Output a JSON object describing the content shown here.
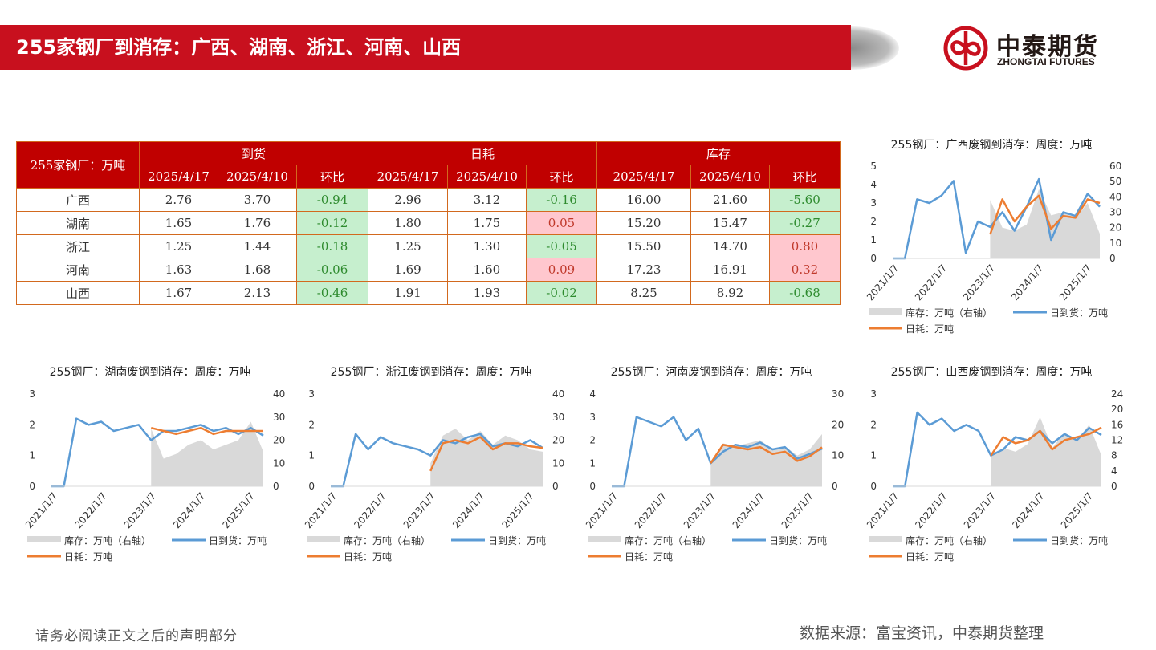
{
  "header": {
    "title": "255家钢厂到消存：广西、湖南、浙江、河南、山西"
  },
  "logo": {
    "cn": "中泰期货",
    "en": "ZHONGTAI FUTURES",
    "color": "#c8101e"
  },
  "table": {
    "corner": "255家钢厂：万吨",
    "groups": [
      "到货",
      "日耗",
      "库存"
    ],
    "subheaders": [
      "2025/4/17",
      "2025/4/10",
      "环比"
    ],
    "rows": [
      {
        "region": "广西",
        "cells": [
          "2.76",
          "3.70",
          "-0.94",
          "2.96",
          "3.12",
          "-0.16",
          "16.00",
          "21.60",
          "-5.60"
        ]
      },
      {
        "region": "湖南",
        "cells": [
          "1.65",
          "1.76",
          "-0.12",
          "1.80",
          "1.75",
          "0.05",
          "15.20",
          "15.47",
          "-0.27"
        ]
      },
      {
        "region": "浙江",
        "cells": [
          "1.25",
          "1.44",
          "-0.18",
          "1.25",
          "1.30",
          "-0.05",
          "15.50",
          "14.70",
          "0.80"
        ]
      },
      {
        "region": "河南",
        "cells": [
          "1.63",
          "1.68",
          "-0.06",
          "1.69",
          "1.60",
          "0.09",
          "17.23",
          "16.91",
          "0.32"
        ]
      },
      {
        "region": "山西",
        "cells": [
          "1.67",
          "2.13",
          "-0.46",
          "1.91",
          "1.93",
          "-0.02",
          "8.25",
          "8.92",
          "-0.68"
        ]
      }
    ],
    "colors": {
      "header": "#c00000",
      "negative_bg": "#c6efce",
      "positive_bg": "#ffc7ce"
    }
  },
  "chart_data": [
    {
      "type": "line",
      "title": "255钢厂：广西废钢到消存：周度：万吨",
      "ylim": [
        0,
        5
      ],
      "y2lim": [
        0,
        60
      ],
      "yticks": [
        "0",
        "1",
        "2",
        "3",
        "4",
        "5"
      ],
      "y2ticks": [
        "0",
        "10",
        "20",
        "30",
        "40",
        "50",
        "60"
      ],
      "xticks": [
        "2021/1/7",
        "2022/1/7",
        "2023/1/7",
        "2024/1/7",
        "2025/1/7"
      ],
      "x": [
        "2021/1",
        "2021/4",
        "2021/7",
        "2021/10",
        "2022/1",
        "2022/4",
        "2022/7",
        "2022/10",
        "2023/1",
        "2023/4",
        "2023/7",
        "2023/10",
        "2024/1",
        "2024/4",
        "2024/7",
        "2024/10",
        "2025/1",
        "2025/4"
      ],
      "series": [
        {
          "name": "库存：万吨（右轴）",
          "kind": "area",
          "axis": "right",
          "color": "#d9d9d9",
          "values": [
            null,
            null,
            null,
            null,
            null,
            null,
            null,
            null,
            38,
            20,
            18,
            22,
            45,
            28,
            30,
            26,
            36,
            16
          ]
        },
        {
          "name": "日到货：万吨",
          "kind": "line",
          "axis": "left",
          "color": "#5b9bd5",
          "values": [
            0,
            0,
            3.2,
            3.0,
            3.4,
            4.2,
            0.3,
            2.0,
            1.7,
            2.5,
            1.5,
            2.8,
            4.3,
            1.0,
            2.5,
            2.3,
            3.5,
            2.8
          ]
        },
        {
          "name": "日耗：万吨",
          "kind": "line",
          "axis": "left",
          "color": "#ed7d31",
          "values": [
            null,
            null,
            null,
            null,
            null,
            null,
            null,
            null,
            1.3,
            3.2,
            2.0,
            2.8,
            3.4,
            1.6,
            2.3,
            2.2,
            3.2,
            3.0
          ]
        }
      ]
    },
    {
      "type": "line",
      "title": "255钢厂：湖南废钢到消存：周度：万吨",
      "ylim": [
        0,
        3
      ],
      "y2lim": [
        0,
        40
      ],
      "yticks": [
        "0",
        "1",
        "2",
        "3"
      ],
      "y2ticks": [
        "0",
        "10",
        "20",
        "30",
        "40"
      ],
      "xticks": [
        "2021/1/7",
        "2022/1/7",
        "2023/1/7",
        "2024/1/7",
        "2025/1/7"
      ],
      "x": [
        "2021/1",
        "2021/4",
        "2021/7",
        "2021/10",
        "2022/1",
        "2022/4",
        "2022/7",
        "2022/10",
        "2023/1",
        "2023/4",
        "2023/7",
        "2023/10",
        "2024/1",
        "2024/4",
        "2024/7",
        "2024/10",
        "2025/1",
        "2025/4"
      ],
      "series": [
        {
          "name": "库存：万吨（右轴）",
          "kind": "area",
          "axis": "right",
          "color": "#d9d9d9",
          "values": [
            null,
            null,
            null,
            null,
            null,
            null,
            null,
            null,
            25,
            12,
            14,
            18,
            20,
            16,
            18,
            20,
            28,
            15
          ]
        },
        {
          "name": "日到货：万吨",
          "kind": "line",
          "axis": "left",
          "color": "#5b9bd5",
          "values": [
            0,
            0,
            2.2,
            2.0,
            2.1,
            1.8,
            1.9,
            2.0,
            1.5,
            1.8,
            1.8,
            1.9,
            2.0,
            1.8,
            1.9,
            1.7,
            1.9,
            1.65
          ]
        },
        {
          "name": "日耗：万吨",
          "kind": "line",
          "axis": "left",
          "color": "#ed7d31",
          "values": [
            null,
            null,
            null,
            null,
            null,
            null,
            null,
            null,
            1.9,
            1.8,
            1.7,
            1.8,
            1.9,
            1.7,
            1.8,
            1.8,
            1.8,
            1.8
          ]
        }
      ]
    },
    {
      "type": "line",
      "title": "255钢厂：浙江废钢到消存：周度：万吨",
      "ylim": [
        0,
        3
      ],
      "y2lim": [
        0,
        40
      ],
      "yticks": [
        "0",
        "1",
        "2",
        "3"
      ],
      "y2ticks": [
        "0",
        "10",
        "20",
        "30",
        "40"
      ],
      "xticks": [
        "2021/1/7",
        "2022/1/7",
        "2023/1/7",
        "2024/1/7",
        "2025/1/7"
      ],
      "x": [
        "2021/1",
        "2021/4",
        "2021/7",
        "2021/10",
        "2022/1",
        "2022/4",
        "2022/7",
        "2022/10",
        "2023/1",
        "2023/4",
        "2023/7",
        "2023/10",
        "2024/1",
        "2024/4",
        "2024/7",
        "2024/10",
        "2025/1",
        "2025/4"
      ],
      "series": [
        {
          "name": "库存：万吨（右轴）",
          "kind": "area",
          "axis": "right",
          "color": "#d9d9d9",
          "values": [
            null,
            null,
            null,
            null,
            null,
            null,
            null,
            null,
            10,
            22,
            25,
            20,
            24,
            18,
            22,
            20,
            16,
            15
          ]
        },
        {
          "name": "日到货：万吨",
          "kind": "line",
          "axis": "left",
          "color": "#5b9bd5",
          "values": [
            0,
            0,
            1.7,
            1.2,
            1.6,
            1.4,
            1.3,
            1.2,
            1.0,
            1.5,
            1.4,
            1.6,
            1.7,
            1.3,
            1.4,
            1.3,
            1.5,
            1.25
          ]
        },
        {
          "name": "日耗：万吨",
          "kind": "line",
          "axis": "left",
          "color": "#ed7d31",
          "values": [
            null,
            null,
            null,
            null,
            null,
            null,
            null,
            null,
            0.5,
            1.4,
            1.5,
            1.4,
            1.6,
            1.2,
            1.4,
            1.4,
            1.3,
            1.25
          ]
        }
      ]
    },
    {
      "type": "line",
      "title": "255钢厂：河南废钢到消存：周度：万吨",
      "ylim": [
        0,
        4
      ],
      "y2lim": [
        0,
        30
      ],
      "yticks": [
        "0",
        "1",
        "2",
        "3",
        "4"
      ],
      "y2ticks": [
        "0",
        "10",
        "20",
        "30"
      ],
      "xticks": [
        "2021/1/7",
        "2022/1/7",
        "2023/1/7",
        "2024/1/7",
        "2025/1/7"
      ],
      "x": [
        "2021/1",
        "2021/4",
        "2021/7",
        "2021/10",
        "2022/1",
        "2022/4",
        "2022/7",
        "2022/10",
        "2023/1",
        "2023/4",
        "2023/7",
        "2023/10",
        "2024/1",
        "2024/4",
        "2024/7",
        "2024/10",
        "2025/1",
        "2025/4"
      ],
      "series": [
        {
          "name": "库存：万吨（右轴）",
          "kind": "area",
          "axis": "right",
          "color": "#d9d9d9",
          "values": [
            null,
            null,
            null,
            null,
            null,
            null,
            null,
            null,
            8,
            14,
            13,
            14,
            15,
            12,
            13,
            10,
            12,
            17
          ]
        },
        {
          "name": "日到货：万吨",
          "kind": "line",
          "axis": "left",
          "color": "#5b9bd5",
          "values": [
            0,
            0,
            3.0,
            2.8,
            2.6,
            3.0,
            2.0,
            2.5,
            1.0,
            1.5,
            1.8,
            1.7,
            1.9,
            1.6,
            1.7,
            1.2,
            1.4,
            1.63
          ]
        },
        {
          "name": "日耗：万吨",
          "kind": "line",
          "axis": "left",
          "color": "#ed7d31",
          "values": [
            null,
            null,
            null,
            null,
            null,
            null,
            null,
            null,
            1.0,
            1.8,
            1.7,
            1.6,
            1.7,
            1.4,
            1.5,
            1.1,
            1.3,
            1.69
          ]
        }
      ]
    },
    {
      "type": "line",
      "title": "255钢厂：山西废钢到消存：周度：万吨",
      "ylim": [
        0,
        3
      ],
      "y2lim": [
        0,
        24
      ],
      "yticks": [
        "0",
        "1",
        "2",
        "3"
      ],
      "y2ticks": [
        "0",
        "4",
        "8",
        "12",
        "16",
        "20",
        "24"
      ],
      "xticks": [
        "2021/1/7",
        "2022/1/7",
        "2023/1/7",
        "2024/1/7",
        "2025/1/7"
      ],
      "x": [
        "2021/1",
        "2021/4",
        "2021/7",
        "2021/10",
        "2022/1",
        "2022/4",
        "2022/7",
        "2022/10",
        "2023/1",
        "2023/4",
        "2023/7",
        "2023/10",
        "2024/1",
        "2024/4",
        "2024/7",
        "2024/10",
        "2025/1",
        "2025/4"
      ],
      "series": [
        {
          "name": "库存：万吨（右轴）",
          "kind": "area",
          "axis": "right",
          "color": "#d9d9d9",
          "values": [
            null,
            null,
            null,
            null,
            null,
            null,
            null,
            null,
            8,
            10,
            9,
            11,
            18,
            10,
            14,
            12,
            16,
            8
          ]
        },
        {
          "name": "日到货：万吨",
          "kind": "line",
          "axis": "left",
          "color": "#5b9bd5",
          "values": [
            0,
            0,
            2.4,
            2.0,
            2.2,
            1.8,
            2.0,
            1.8,
            1.0,
            1.2,
            1.6,
            1.5,
            1.8,
            1.4,
            1.7,
            1.5,
            1.9,
            1.67
          ]
        },
        {
          "name": "日耗：万吨",
          "kind": "line",
          "axis": "left",
          "color": "#ed7d31",
          "values": [
            null,
            null,
            null,
            null,
            null,
            null,
            null,
            null,
            1.0,
            1.6,
            1.4,
            1.5,
            1.8,
            1.2,
            1.5,
            1.6,
            1.7,
            1.91
          ]
        }
      ]
    }
  ],
  "footer": {
    "disclaimer": "请务必阅读正文之后的声明部分",
    "source": "数据来源：富宝资讯，中泰期货整理"
  }
}
